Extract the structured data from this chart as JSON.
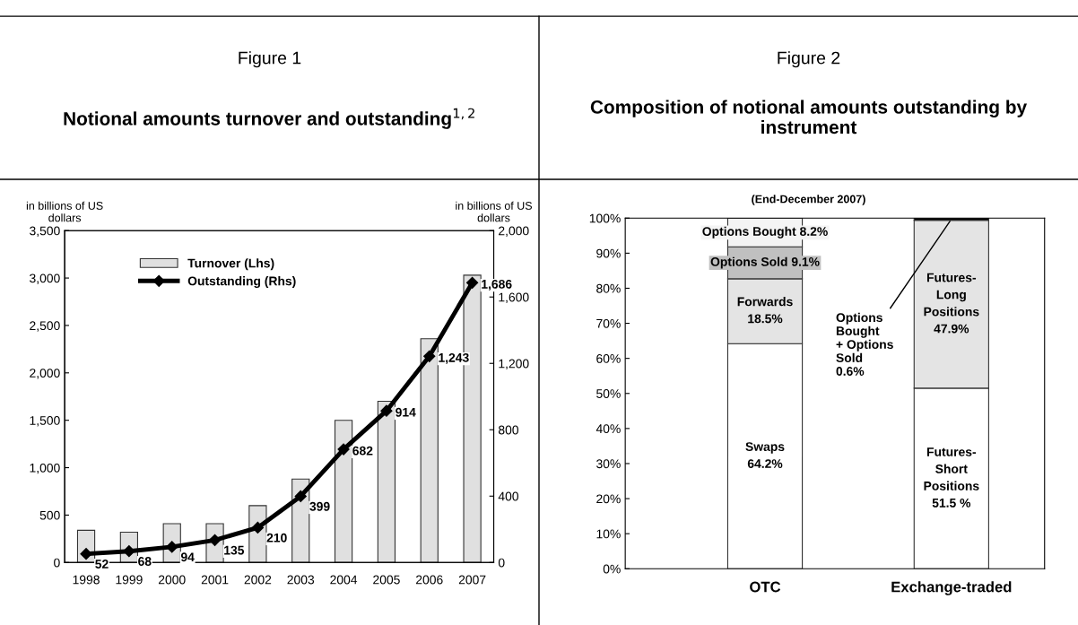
{
  "chart_data": [
    {
      "type": "bar",
      "title": "Notional amounts turnover and outstanding$^{1,2}$",
      "annotations": [
        "Figure 1"
      ],
      "ylabel": "in billions of US\ndollars",
      "y2label": "in billions of US\ndollars",
      "categories": [
        "1998",
        "1999",
        "2000",
        "2001",
        "2002",
        "2003",
        "2004",
        "2005",
        "2006",
        "2007"
      ],
      "series": [
        {
          "name": "Turnover (Lhs)",
          "type": "bar",
          "color": "#e0e0e0",
          "values": [
            340,
            320,
            410,
            410,
            600,
            880,
            1500,
            1700,
            2360,
            3030
          ]
        },
        {
          "name": "Outstanding (Rhs)",
          "type": "line",
          "axis": "y2",
          "color": "#000000",
          "values": [
            52,
            68,
            94,
            135,
            210,
            399,
            682,
            914,
            1243,
            1686
          ],
          "value_labels": [
            "52",
            "68",
            "94",
            "135",
            "210",
            "399",
            "682",
            "914",
            "1,243",
            "1,686"
          ]
        }
      ],
      "ylim": [
        0,
        3500
      ],
      "yticks": [
        0,
        {
          "value": 500,
          "label": "500"
        },
        {
          "value": 1000,
          "label": "1,000"
        },
        {
          "value": 1500,
          "label": "1,500"
        },
        {
          "value": 2000,
          "label": "2,000"
        },
        {
          "value": 2500,
          "label": "2,500"
        },
        {
          "value": 3000,
          "label": "3,000"
        },
        {
          "value": 3500,
          "label": "3,500"
        }
      ],
      "y2lim": [
        0,
        2000
      ],
      "y2ticks": [
        0,
        400,
        800,
        {
          "value": 1200,
          "label": "1,200"
        },
        {
          "value": 1600,
          "label": "1,600"
        },
        {
          "value": 2000,
          "label": "2,000"
        }
      ],
      "legend": "top left",
      "marker": "diamond",
      "grid": false
    },
    {
      "type": "bar",
      "stacked": true,
      "title": "Composition of notional amounts outstanding by instrument",
      "subtitle": "(End-December 2007)",
      "annotations": [
        "Figure 2",
        {
          "text": "Options\nBought\n+ Options\nSold\n0.6%",
          "x": "Exchange-traded",
          "y": 99.7
        }
      ],
      "categories": [
        "OTC",
        "Exchange-traded"
      ],
      "series": [
        {
          "color": "#ffffff",
          "values": [
            64.2,
            51.5
          ],
          "value_labels": [
            "Swaps\n64.2%",
            "Futures-\nShort\nPositions\n51.5 %"
          ]
        },
        {
          "color": "#e4e4e4",
          "values": [
            18.5,
            47.9
          ],
          "value_labels": [
            "Forwards\n18.5%",
            "Futures-\nLong\nPositions\n47.9%"
          ]
        },
        {
          "colors": [
            "#c0c0c0",
            "#000000"
          ],
          "values": [
            9.1,
            0.6
          ],
          "value_labels": [
            "Options Sold 9.1%",
            null
          ]
        },
        {
          "color": "#f4f4f4",
          "values": [
            8.2,
            null
          ],
          "value_labels": [
            "Options Bought 8.2%",
            null
          ]
        }
      ],
      "ylim": [
        0,
        100
      ],
      "yticks": [
        {
          "value": 0,
          "label": "0%"
        },
        {
          "value": 10,
          "label": "10%"
        },
        {
          "value": 20,
          "label": "20%"
        },
        {
          "value": 30,
          "label": "30%"
        },
        {
          "value": 40,
          "label": "40%"
        },
        {
          "value": 50,
          "label": "50%"
        },
        {
          "value": 60,
          "label": "60%"
        },
        {
          "value": 70,
          "label": "70%"
        },
        {
          "value": 80,
          "label": "80%"
        },
        {
          "value": 90,
          "label": "90%"
        },
        {
          "value": 100,
          "label": "100%"
        }
      ],
      "grid": false
    }
  ]
}
